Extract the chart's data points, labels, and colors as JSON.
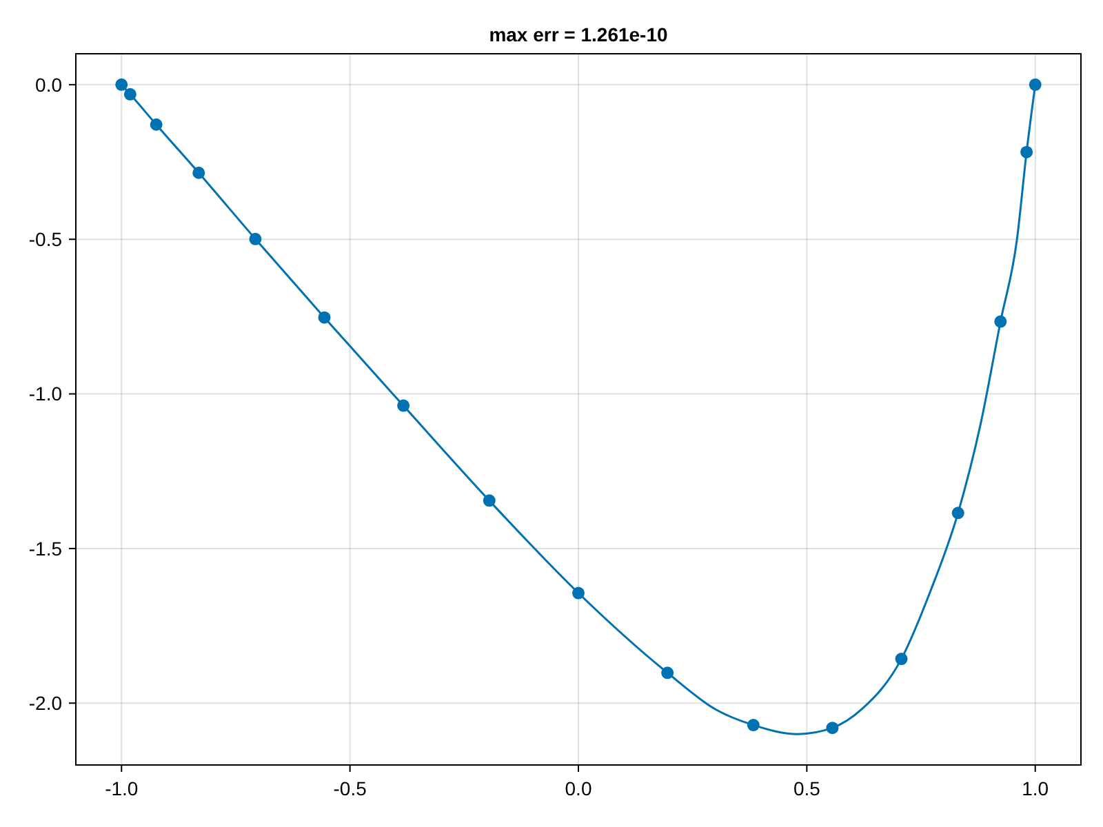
{
  "chart_data": {
    "type": "line",
    "title": "max err = 1.261e-10",
    "xlim": [
      -1.1,
      1.1
    ],
    "ylim": [
      -2.2,
      0.1
    ],
    "xticks": [
      {
        "value": -1,
        "label": "-1.0"
      },
      {
        "value": -0.5,
        "label": "-0.5"
      },
      {
        "value": 0,
        "label": "0.0"
      },
      {
        "value": 0.5,
        "label": "0.5"
      },
      {
        "value": 1,
        "label": "1.0"
      }
    ],
    "yticks": [
      {
        "value": -2,
        "label": "-2.0"
      },
      {
        "value": -1.5,
        "label": "-1.5"
      },
      {
        "value": -1,
        "label": "-1.0"
      },
      {
        "value": -0.5,
        "label": "-0.5"
      },
      {
        "value": 0,
        "label": "0.0"
      }
    ],
    "grid": true,
    "series": [
      {
        "color": "#0072b2",
        "marker": "none",
        "line_style": "solid",
        "x": [
          -1,
          -0.981,
          -0.924,
          -0.831,
          -0.707,
          -0.556,
          -0.383,
          -0.195,
          0,
          0.195,
          0.3,
          0.383,
          0.48,
          0.556,
          0.62,
          0.707,
          0.77,
          0.831,
          0.88,
          0.924,
          0.96,
          0.981,
          1
        ],
        "values": [
          0,
          -0.031,
          -0.129,
          -0.285,
          -0.499,
          -0.753,
          -1.038,
          -1.345,
          -1.644,
          -1.902,
          -2.02,
          -2.071,
          -2.1,
          -2.08,
          -2.02,
          -1.857,
          -1.64,
          -1.385,
          -1.1,
          -0.766,
          -0.5,
          -0.218,
          0
        ]
      },
      {
        "type": "scatter",
        "color": "#0072b2",
        "marker": "circle",
        "x": [
          -1,
          -0.981,
          -0.924,
          -0.831,
          -0.707,
          -0.556,
          -0.383,
          -0.195,
          0,
          0.195,
          0.383,
          0.556,
          0.707,
          0.831,
          0.924,
          0.981,
          1
        ],
        "values": [
          0,
          -0.031,
          -0.129,
          -0.285,
          -0.499,
          -0.753,
          -1.038,
          -1.345,
          -1.644,
          -1.902,
          -2.071,
          -2.08,
          -1.857,
          -1.385,
          -0.766,
          -0.218,
          0
        ]
      }
    ]
  }
}
